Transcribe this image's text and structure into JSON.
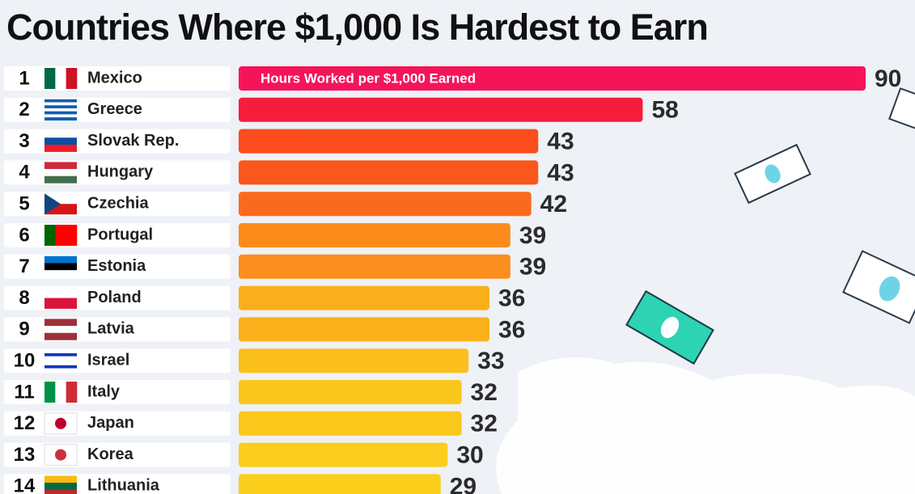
{
  "chart_data": {
    "type": "bar",
    "title": "Countries Where $1,000 Is Hardest to Earn",
    "annotation": "Hours Worked per $1,000 Earned",
    "ranks": [
      1,
      2,
      3,
      4,
      5,
      6,
      7,
      8,
      9,
      10,
      11,
      12,
      13,
      14
    ],
    "categories": [
      "Mexico",
      "Greece",
      "Slovak Rep.",
      "Hungary",
      "Czechia",
      "Portugal",
      "Estonia",
      "Poland",
      "Latvia",
      "Israel",
      "Italy",
      "Japan",
      "Korea",
      "Lithuania"
    ],
    "values": [
      90,
      58,
      43,
      43,
      42,
      39,
      39,
      36,
      36,
      33,
      32,
      32,
      30,
      29
    ],
    "colors": [
      "#f5145a",
      "#f41d3c",
      "#fb4d1e",
      "#fb561c",
      "#fb6a1c",
      "#fb8c1c",
      "#fb8e1c",
      "#fbae1c",
      "#fbb01c",
      "#fbbf1c",
      "#fbc61c",
      "#fbc81c",
      "#fbcd1c",
      "#fbcf1c"
    ]
  }
}
